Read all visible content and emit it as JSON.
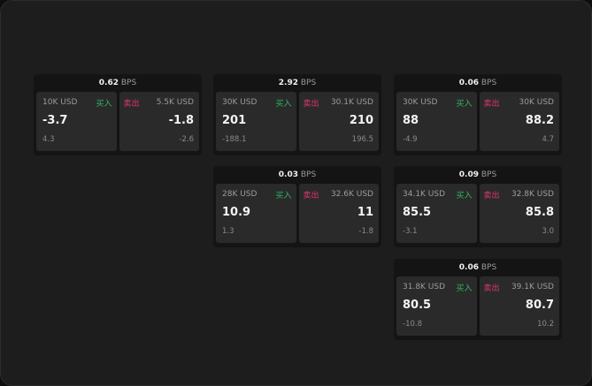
{
  "unit": "BPS",
  "buy_label": "买入",
  "sell_label": "卖出",
  "colors": {
    "buy": "#2fb862",
    "sell": "#e0366b"
  },
  "cards": [
    {
      "spread": "0.62",
      "buy": {
        "amount": "10K USD",
        "price": "-3.7",
        "change": "4.3"
      },
      "sell": {
        "amount": "5.5K USD",
        "price": "-1.8",
        "change": "-2.6"
      }
    },
    {
      "spread": "2.92",
      "buy": {
        "amount": "30K USD",
        "price": "201",
        "change": "-188.1"
      },
      "sell": {
        "amount": "30.1K USD",
        "price": "210",
        "change": "196.5"
      }
    },
    {
      "spread": "0.06",
      "buy": {
        "amount": "30K USD",
        "price": "88",
        "change": "-4.9"
      },
      "sell": {
        "amount": "30K USD",
        "price": "88.2",
        "change": "4.7"
      }
    },
    {
      "spread": "0.03",
      "buy": {
        "amount": "28K USD",
        "price": "10.9",
        "change": "1.3"
      },
      "sell": {
        "amount": "32.6K USD",
        "price": "11",
        "change": "-1.8"
      }
    },
    {
      "spread": "0.09",
      "buy": {
        "amount": "34.1K USD",
        "price": "85.5",
        "change": "-3.1"
      },
      "sell": {
        "amount": "32.8K USD",
        "price": "85.8",
        "change": "3.0"
      }
    },
    {
      "spread": "0.06",
      "buy": {
        "amount": "31.8K USD",
        "price": "80.5",
        "change": "-10.8"
      },
      "sell": {
        "amount": "39.1K USD",
        "price": "80.7",
        "change": "10.2"
      }
    }
  ]
}
